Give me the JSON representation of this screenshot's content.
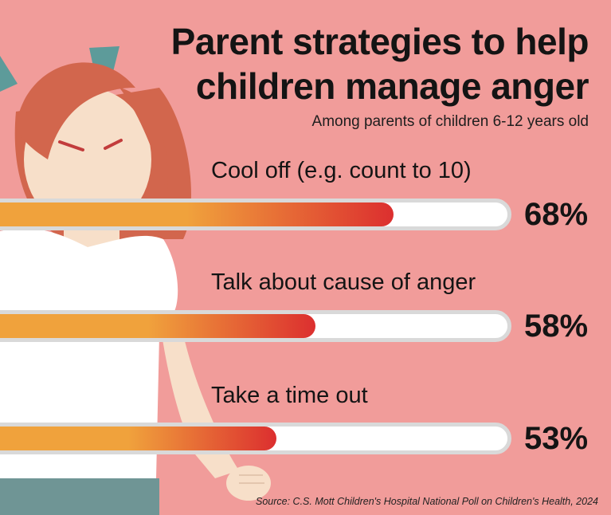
{
  "chart_data": {
    "type": "bar",
    "title": "Parent strategies to help children manage anger",
    "subtitle": "Among parents of children 6-12 years old",
    "categories": [
      "Cool off (e.g. count to 10)",
      "Talk about cause of anger",
      "Take a time out"
    ],
    "values": [
      68,
      58,
      53
    ],
    "value_labels": [
      "68%",
      "58%",
      "53%"
    ],
    "orientation": "horizontal",
    "xlim": [
      0,
      100
    ],
    "source": "Source: C.S. Mott Children's Hospital National Poll on Children's Health, 2024"
  },
  "colors": {
    "background": "#f19c9a",
    "bar_start": "#f0a23c",
    "bar_end": "#dc2f2f",
    "track": "#ffffff",
    "track_border": "#d9d9d9"
  }
}
